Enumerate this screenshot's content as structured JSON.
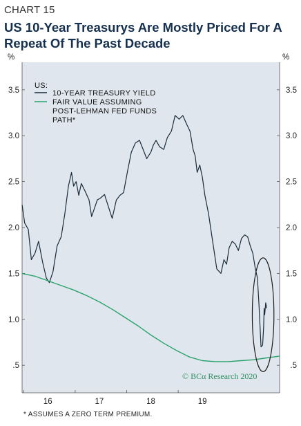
{
  "header": {
    "label": "CHART 15",
    "title": "US 10-Year Treasurys Are Mostly Priced For A Repeat Of The Past Decade"
  },
  "footnote": "* ASSUMES A ZERO TERM PREMIUM.",
  "credit": "© BCα Research 2020",
  "colors": {
    "yield_line": "#1a2b3a",
    "fair_value_line": "#2aa36b",
    "background": "#dfe6ee",
    "ellipse": "#1a1a1a"
  },
  "chart_data": {
    "type": "line",
    "title": "US 10-Year Treasurys Are Mostly Priced For A Repeat Of The Past Decade",
    "units_left": "%",
    "units_right": "%",
    "legend_header": "US:",
    "legend_position": "top-left",
    "grid": false,
    "x_range": [
      2015.5,
      2020.5
    ],
    "xticks": [
      {
        "value": 2016.0,
        "label": "16"
      },
      {
        "value": 2017.0,
        "label": "17"
      },
      {
        "value": 2018.0,
        "label": "18"
      },
      {
        "value": 2019.0,
        "label": "19"
      }
    ],
    "ylim": [
      0.2,
      3.8
    ],
    "yticks": [
      {
        "value": 0.5,
        "label": ".5"
      },
      {
        "value": 1.0,
        "label": "1.0"
      },
      {
        "value": 1.5,
        "label": "1.5"
      },
      {
        "value": 2.0,
        "label": "2.0"
      },
      {
        "value": 2.5,
        "label": "2.5"
      },
      {
        "value": 3.0,
        "label": "3.0"
      },
      {
        "value": 3.5,
        "label": "3.5"
      }
    ],
    "series": [
      {
        "name": "10-YEAR TREASURY YIELD",
        "x": [
          2015.5,
          2015.55,
          2015.62,
          2015.68,
          2015.75,
          2015.82,
          2015.9,
          2015.97,
          2016.03,
          2016.1,
          2016.18,
          2016.26,
          2016.33,
          2016.4,
          2016.46,
          2016.5,
          2016.55,
          2016.6,
          2016.65,
          2016.72,
          2016.8,
          2016.85,
          2016.9,
          2016.96,
          2017.02,
          2017.1,
          2017.18,
          2017.25,
          2017.33,
          2017.4,
          2017.47,
          2017.55,
          2017.62,
          2017.7,
          2017.78,
          2017.85,
          2017.92,
          2018.0,
          2018.05,
          2018.1,
          2018.17,
          2018.25,
          2018.32,
          2018.4,
          2018.47,
          2018.55,
          2018.62,
          2018.7,
          2018.76,
          2018.82,
          2018.86,
          2018.9,
          2018.95,
          2019.0,
          2019.05,
          2019.12,
          2019.2,
          2019.28,
          2019.36,
          2019.42,
          2019.47,
          2019.52,
          2019.58,
          2019.64,
          2019.7,
          2019.76,
          2019.82,
          2019.88,
          2019.93,
          2019.98,
          2020.03,
          2020.07,
          2020.1,
          2020.14,
          2020.17,
          2020.19,
          2020.2,
          2020.21,
          2020.23,
          2020.25
        ],
        "values": [
          2.25,
          2.05,
          1.98,
          1.65,
          1.72,
          1.85,
          1.62,
          1.45,
          1.4,
          1.52,
          1.8,
          1.9,
          2.15,
          2.45,
          2.6,
          2.45,
          2.5,
          2.35,
          2.48,
          2.4,
          2.3,
          2.12,
          2.2,
          2.3,
          2.32,
          2.36,
          2.22,
          2.1,
          2.3,
          2.35,
          2.38,
          2.62,
          2.82,
          2.92,
          2.95,
          2.85,
          2.75,
          2.82,
          2.9,
          2.95,
          2.88,
          2.85,
          2.98,
          3.05,
          3.22,
          3.18,
          3.22,
          3.12,
          3.05,
          2.85,
          2.78,
          2.6,
          2.68,
          2.55,
          2.35,
          2.15,
          1.85,
          1.55,
          1.5,
          1.65,
          1.6,
          1.78,
          1.85,
          1.82,
          1.75,
          1.88,
          1.92,
          1.9,
          1.8,
          1.72,
          1.55,
          1.45,
          1.15,
          0.7,
          0.72,
          0.92,
          1.12,
          1.05,
          1.18,
          1.12
        ]
      },
      {
        "name": "FAIR VALUE ASSUMING POST-LEHMAN FED FUNDS PATH*",
        "x": [
          2015.5,
          2015.75,
          2016.0,
          2016.25,
          2016.5,
          2016.75,
          2017.0,
          2017.25,
          2017.5,
          2017.75,
          2018.0,
          2018.25,
          2018.5,
          2018.75,
          2019.0,
          2019.25,
          2019.5,
          2019.75,
          2020.0,
          2020.25,
          2020.5
        ],
        "values": [
          1.5,
          1.47,
          1.42,
          1.37,
          1.32,
          1.26,
          1.19,
          1.11,
          1.02,
          0.93,
          0.83,
          0.74,
          0.66,
          0.59,
          0.55,
          0.54,
          0.54,
          0.55,
          0.56,
          0.58,
          0.6
        ]
      }
    ],
    "annotations": [
      {
        "type": "ellipse",
        "cx": 2020.18,
        "cy": 1.05,
        "rx": 0.21,
        "ry": 0.62
      }
    ]
  }
}
